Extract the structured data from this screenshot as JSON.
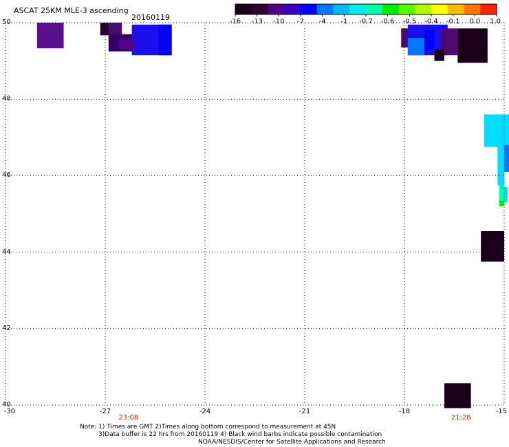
{
  "header": {
    "title": "ASCAT 25KM MLE-3 ascending",
    "date": "20160119"
  },
  "colorbar": {
    "labels": [
      "-16",
      "-13",
      "-10",
      "-7",
      "-4",
      "-1",
      "-0.7",
      "-0.6",
      "-0.5",
      "-0.4",
      "-0.1",
      "0.0",
      "1.0"
    ],
    "colors": [
      "#1a0018",
      "#330033",
      "#55008a",
      "#3300cc",
      "#0000ff",
      "#0077ff",
      "#00bbff",
      "#00eeee",
      "#00ffaa",
      "#00ee00",
      "#55ff00",
      "#aaff00",
      "#ffff00",
      "#ffbb00",
      "#ff7700",
      "#ff2200"
    ]
  },
  "axes": {
    "x_ticks": [
      "-30",
      "-27",
      "-24",
      "-21",
      "-18",
      "-15"
    ],
    "y_ticks": [
      "50",
      "48",
      "46",
      "44",
      "42",
      "40"
    ],
    "x_range": [
      -30,
      -15
    ],
    "y_range": [
      40,
      50
    ],
    "gridlines": "dotted"
  },
  "time_labels": [
    {
      "text": "23:08",
      "lon": -26.3
    },
    {
      "text": "21:28",
      "lon": -16.3
    }
  ],
  "notes": {
    "line1": "Note: 1) Times are GMT 2)Times along bottom correspond to measurement at 45N",
    "line2": "3)Data buffer is 22 hrs from 20160119 4) Black wind barbs indicate possible contamination",
    "line3": "NOAA/NESDIS/Center for Satellite Applications and Research"
  },
  "map_cells": [
    {
      "lon": -29.05,
      "lat": 49.33,
      "w": 0.8,
      "h": 0.67,
      "color": "#5a0f8f"
    },
    {
      "lon": -27.15,
      "lat": 49.67,
      "w": 0.3,
      "h": 0.33,
      "color": "#2a0028"
    },
    {
      "lon": -26.9,
      "lat": 49.5,
      "w": 0.4,
      "h": 0.5,
      "color": "#4a0a6e"
    },
    {
      "lon": -26.9,
      "lat": 49.25,
      "w": 1.0,
      "h": 0.45,
      "color": "#330066"
    },
    {
      "lon": -26.2,
      "lat": 49.15,
      "w": 1.2,
      "h": 0.8,
      "color": "#1a10ee"
    },
    {
      "lon": -25.4,
      "lat": 49.15,
      "w": 0.4,
      "h": 0.8,
      "color": "#0000ff"
    },
    {
      "lon": -26.6,
      "lat": 49.3,
      "w": 0.5,
      "h": 0.25,
      "color": "#55008a"
    },
    {
      "lon": -18.1,
      "lat": 49.35,
      "w": 0.3,
      "h": 0.5,
      "color": "#4a0a6e"
    },
    {
      "lon": -17.9,
      "lat": 49.15,
      "w": 1.2,
      "h": 0.8,
      "color": "#1a10ee"
    },
    {
      "lon": -17.9,
      "lat": 49.15,
      "w": 0.5,
      "h": 0.45,
      "color": "#0077ff"
    },
    {
      "lon": -17.4,
      "lat": 49.3,
      "w": 0.3,
      "h": 0.5,
      "color": "#0000ff"
    },
    {
      "lon": -16.9,
      "lat": 49.15,
      "w": 0.5,
      "h": 0.7,
      "color": "#4a0a6e"
    },
    {
      "lon": -17.1,
      "lat": 49.0,
      "w": 0.3,
      "h": 0.3,
      "color": "#1a0018"
    },
    {
      "lon": -16.4,
      "lat": 48.95,
      "w": 0.9,
      "h": 0.9,
      "color": "#1a0018"
    },
    {
      "lon": -15.6,
      "lat": 46.75,
      "w": 0.8,
      "h": 0.85,
      "color": "#00ddff"
    },
    {
      "lon": -15.2,
      "lat": 45.75,
      "w": 0.2,
      "h": 1.05,
      "color": "#00ddff"
    },
    {
      "lon": -15.0,
      "lat": 46.1,
      "w": 0.2,
      "h": 0.7,
      "color": "#0077ff"
    },
    {
      "lon": -15.15,
      "lat": 45.35,
      "w": 0.15,
      "h": 0.4,
      "color": "#00ffaa"
    },
    {
      "lon": -15.15,
      "lat": 45.2,
      "w": 0.15,
      "h": 0.15,
      "color": "#00ee00"
    },
    {
      "lon": -15.0,
      "lat": 45.3,
      "w": 0.1,
      "h": 0.4,
      "color": "#00ddff"
    },
    {
      "lon": -15.7,
      "lat": 43.75,
      "w": 0.7,
      "h": 0.8,
      "color": "#1a0018"
    },
    {
      "lon": -16.8,
      "lat": 39.92,
      "w": 0.8,
      "h": 0.65,
      "color": "#1a0018"
    }
  ]
}
